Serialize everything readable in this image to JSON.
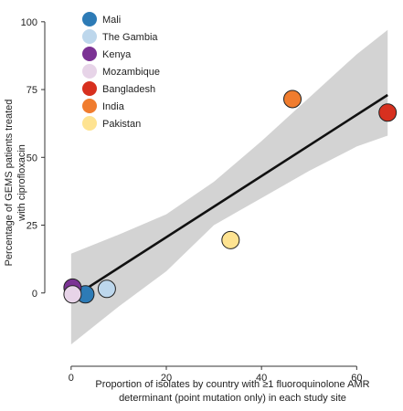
{
  "chart_data": {
    "type": "scatter",
    "title": "",
    "xlabel_lines": [
      "Proportion of isolates by country with ≥1 fluoroquinolone AMR",
      "determinant (point mutation only) in each study site"
    ],
    "ylabel_lines": [
      "Percentage of GEMS patients treated",
      "with ciprofloxacin"
    ],
    "xlim": [
      -4,
      68
    ],
    "ylim": [
      -25,
      106
    ],
    "xticks": [
      0,
      20,
      40,
      60
    ],
    "yticks": [
      0,
      25,
      50,
      75,
      100
    ],
    "legend_position": "top-left",
    "grid": false,
    "points": [
      {
        "name": "Mali",
        "x": 3,
        "y": -0.5,
        "color": "#2d7bb6"
      },
      {
        "name": "The Gambia",
        "x": 7.5,
        "y": 1.5,
        "color": "#bdd7ec"
      },
      {
        "name": "Kenya",
        "x": 0.3,
        "y": 2,
        "color": "#7b3294"
      },
      {
        "name": "Mozambique",
        "x": 0.3,
        "y": -0.5,
        "color": "#e7d4e8"
      },
      {
        "name": "Bangladesh",
        "x": 66.5,
        "y": 66.5,
        "color": "#d7301f"
      },
      {
        "name": "India",
        "x": 46.5,
        "y": 71.5,
        "color": "#f07c2e"
      },
      {
        "name": "Pakistan",
        "x": 33.5,
        "y": 19.5,
        "color": "#fee391"
      }
    ],
    "regression_line": {
      "x": [
        0,
        66.5
      ],
      "y": [
        -2,
        73
      ]
    },
    "confidence_band": {
      "x": [
        0,
        10,
        20,
        30,
        40,
        50,
        60,
        66.5
      ],
      "upper": [
        14.5,
        21.5,
        29,
        41,
        56,
        72,
        88,
        97
      ],
      "lower": [
        -19,
        -5,
        8,
        25,
        35,
        45,
        54,
        58
      ]
    }
  }
}
